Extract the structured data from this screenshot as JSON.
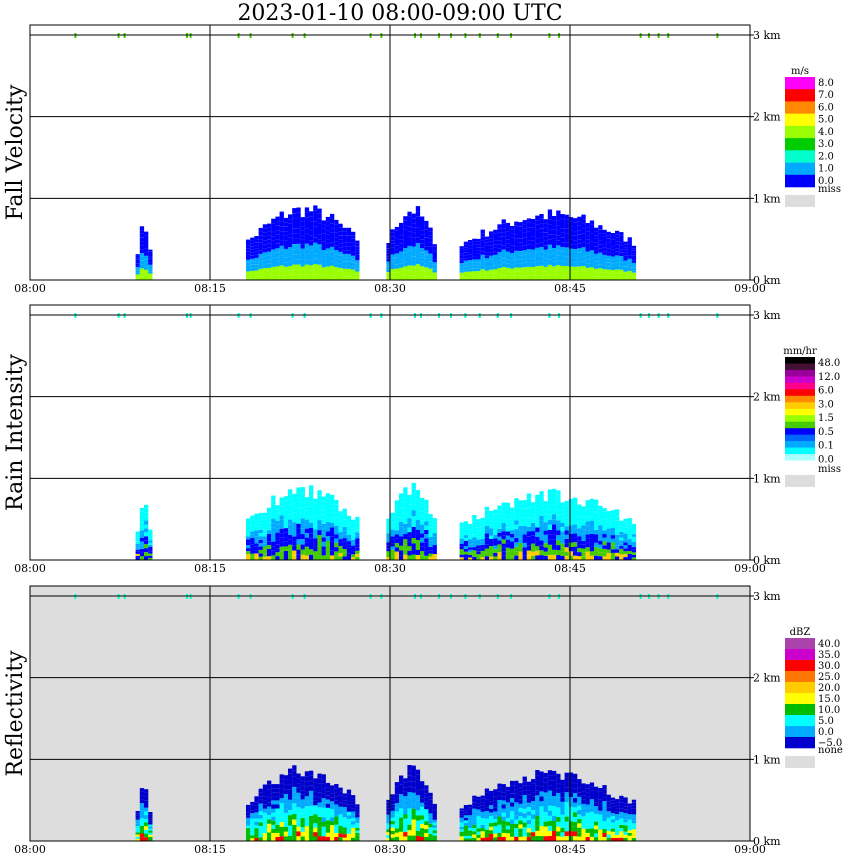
{
  "title": "2023-01-10   08:00-09:00 UTC",
  "x_ticks": [
    "08:00",
    "08:15",
    "08:30",
    "08:45",
    "09:00"
  ],
  "height_ticks": [
    "0 km",
    "1 km",
    "2 km",
    "3 km"
  ],
  "chart_data": [
    {
      "type": "heatmap",
      "ylabel": "Fall Velocity",
      "xlim": [
        "08:00",
        "09:00"
      ],
      "ylim_km": [
        0,
        3
      ],
      "colorbar": {
        "unit": "m/s",
        "labels": [
          "8.0",
          "7.0",
          "6.0",
          "5.0",
          "4.0",
          "3.0",
          "2.0",
          "1.0",
          "0.0"
        ],
        "colors": [
          "#ff00ff",
          "#ff0000",
          "#ff8800",
          "#ffff00",
          "#99ff00",
          "#00cc00",
          "#00ffcc",
          "#00aaff",
          "#0000ff"
        ],
        "missing_label": "miss",
        "missing_color": "#dddddd"
      },
      "background": "#ffffff",
      "top_marker_color": "#44cc00"
    },
    {
      "type": "heatmap",
      "ylabel": "Rain Intensity",
      "xlim": [
        "08:00",
        "09:00"
      ],
      "ylim_km": [
        0,
        3
      ],
      "colorbar": {
        "unit": "mm/hr",
        "labels": [
          "48.0",
          "12.0",
          "6.0",
          "3.0",
          "1.5",
          "0.5",
          "0.1",
          "0.0"
        ],
        "colors": [
          "#000000",
          "#441133",
          "#990099",
          "#cc00cc",
          "#ff0088",
          "#ff0000",
          "#ff8800",
          "#ffcc00",
          "#ffff00",
          "#99ff00",
          "#44cc00",
          "#0000ff",
          "#0066ff",
          "#00aaff",
          "#00ffff",
          "#aaffff",
          "#ffffff"
        ],
        "missing_label": "miss",
        "missing_color": "#dddddd"
      },
      "background": "#ffffff",
      "top_marker_color": "#00ffcc"
    },
    {
      "type": "heatmap",
      "ylabel": "Reflectivity",
      "xlim": [
        "08:00",
        "09:00"
      ],
      "ylim_km": [
        0,
        3
      ],
      "colorbar": {
        "unit": "dBZ",
        "labels": [
          "40.0",
          "35.0",
          "30.0",
          "25.0",
          "20.0",
          "15.0",
          "10.0",
          "5.0",
          "0.0",
          "−5.0"
        ],
        "colors": [
          "#aa44aa",
          "#cc00cc",
          "#ff0000",
          "#ff7700",
          "#ffcc00",
          "#ffff00",
          "#00bb00",
          "#00ffff",
          "#00aaff",
          "#0000cc"
        ],
        "missing_label": "none",
        "missing_color": "#dddddd"
      },
      "background": "#dddddd",
      "top_marker_color": "#00ffcc"
    }
  ]
}
